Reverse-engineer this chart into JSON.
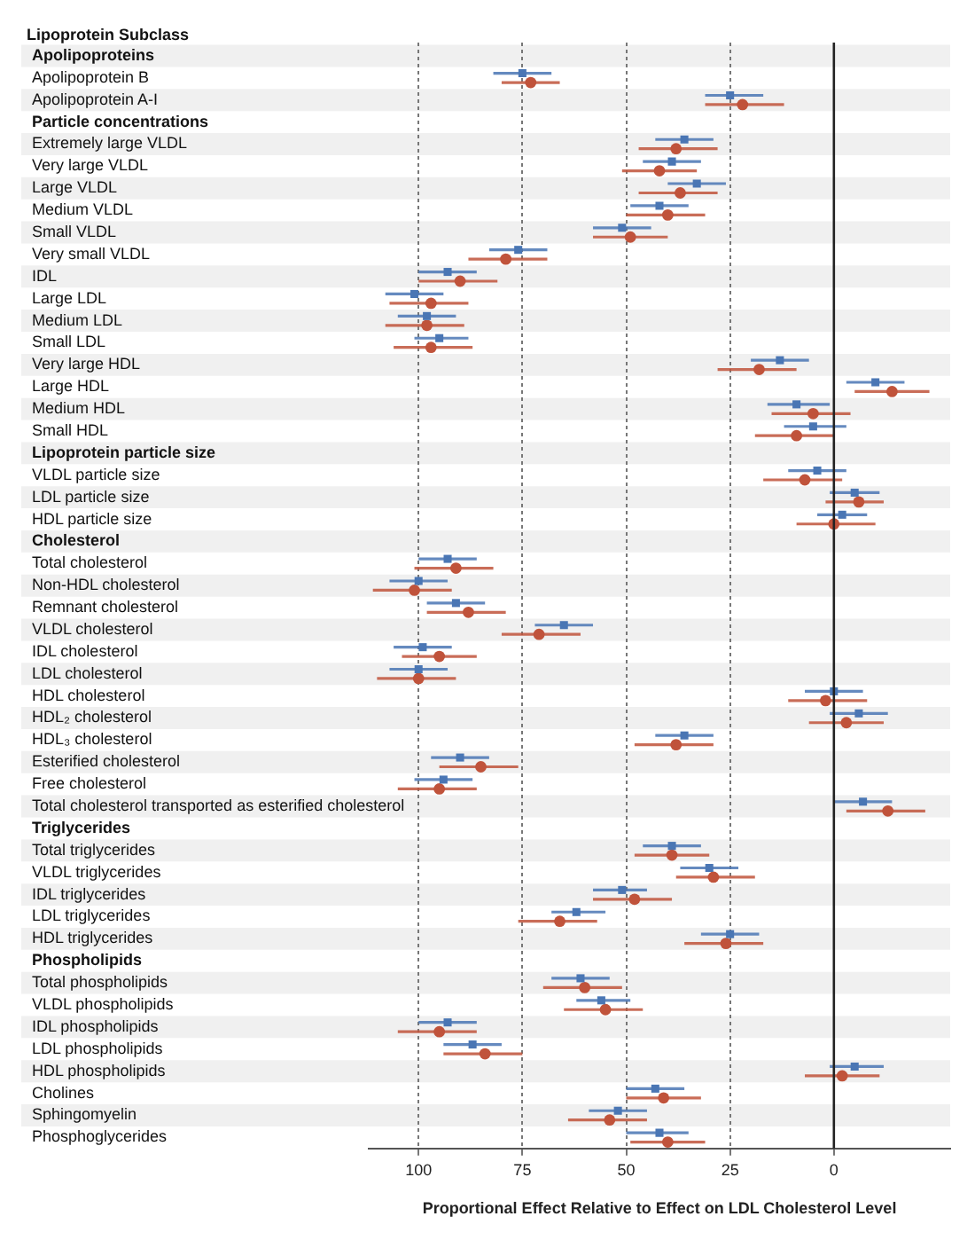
{
  "chart_data": {
    "type": "scatter",
    "orientation": "horizontal",
    "ylabel": "Lipoprotein Subclass",
    "xlabel": "Proportional Effect Relative to Effect on LDL Cholesterol Level",
    "categories": [
      "Apolipoproteins",
      "Apolipoprotein B",
      "Apolipoprotein A-I",
      "Particle concentrations",
      "Extremely large VLDL",
      "Very large VLDL",
      "Large VLDL",
      "Medium VLDL",
      "Small VLDL",
      "Very small VLDL",
      "IDL",
      "Large LDL",
      "Medium LDL",
      "Small LDL",
      "Very large HDL",
      "Large HDL",
      "Medium HDL",
      "Small HDL",
      "Lipoprotein particle size",
      "VLDL particle size",
      "LDL particle size",
      "HDL particle size",
      "Cholesterol",
      "Total cholesterol",
      "Non-HDL cholesterol",
      "Remnant cholesterol",
      "VLDL cholesterol",
      "IDL cholesterol",
      "LDL cholesterol",
      "HDL cholesterol",
      "HDL₂ cholesterol",
      "HDL₃ cholesterol",
      "Esterified cholesterol",
      "Free cholesterol",
      "Total cholesterol transported as esterified cholesterol",
      "Triglycerides",
      "Total triglycerides",
      "VLDL triglycerides",
      "IDL triglycerides",
      "LDL triglycerides",
      "HDL triglycerides",
      "Phospholipids",
      "Total phospholipids",
      "VLDL phospholipids",
      "IDL phospholipids",
      "LDL phospholipids",
      "HDL phospholipids",
      "Cholines",
      "Sphingomyelin",
      "Phosphoglycerides"
    ],
    "series": [
      {
        "color": "#4a76b4",
        "marker": "square",
        "values": [
          null,
          75,
          25,
          null,
          36,
          39,
          33,
          42,
          51,
          76,
          93,
          101,
          98,
          95,
          13,
          -10,
          9,
          5,
          null,
          4,
          -5,
          -2,
          null,
          93,
          100,
          91,
          65,
          99,
          100,
          0,
          -6,
          36,
          90,
          94,
          -7,
          null,
          39,
          30,
          51,
          62,
          25,
          null,
          61,
          56,
          93,
          87,
          -5,
          43,
          52,
          42
        ],
        "errors": [
          null,
          [
            68,
            82
          ],
          [
            17,
            31
          ],
          null,
          [
            29,
            43
          ],
          [
            32,
            46
          ],
          [
            26,
            40
          ],
          [
            35,
            49
          ],
          [
            44,
            58
          ],
          [
            69,
            83
          ],
          [
            86,
            100
          ],
          [
            94,
            108
          ],
          [
            91,
            105
          ],
          [
            88,
            101
          ],
          [
            6,
            20
          ],
          [
            -17,
            -3
          ],
          [
            1,
            16
          ],
          [
            -3,
            12
          ],
          null,
          [
            -3,
            11
          ],
          [
            -11,
            1
          ],
          [
            -8,
            4
          ],
          null,
          [
            86,
            100
          ],
          [
            93,
            107
          ],
          [
            84,
            98
          ],
          [
            58,
            72
          ],
          [
            92,
            106
          ],
          [
            93,
            107
          ],
          [
            -7,
            7
          ],
          [
            -13,
            1
          ],
          [
            29,
            43
          ],
          [
            83,
            97
          ],
          [
            87,
            101
          ],
          [
            -14,
            0
          ],
          null,
          [
            32,
            46
          ],
          [
            23,
            37
          ],
          [
            45,
            58
          ],
          [
            55,
            68
          ],
          [
            18,
            32
          ],
          null,
          [
            54,
            68
          ],
          [
            49,
            62
          ],
          [
            86,
            100
          ],
          [
            80,
            94
          ],
          [
            -12,
            1
          ],
          [
            36,
            50
          ],
          [
            45,
            59
          ],
          [
            35,
            50
          ]
        ]
      },
      {
        "color": "#c0533b",
        "marker": "circle",
        "values": [
          null,
          73,
          22,
          null,
          38,
          42,
          37,
          40,
          49,
          79,
          90,
          97,
          98,
          97,
          18,
          -14,
          5,
          9,
          null,
          7,
          -6,
          0,
          null,
          91,
          101,
          88,
          71,
          95,
          100,
          2,
          -3,
          38,
          85,
          95,
          -13,
          null,
          39,
          29,
          48,
          66,
          26,
          null,
          60,
          55,
          95,
          84,
          -2,
          41,
          54,
          40
        ],
        "errors": [
          null,
          [
            66,
            80
          ],
          [
            12,
            31
          ],
          null,
          [
            28,
            47
          ],
          [
            33,
            51
          ],
          [
            28,
            47
          ],
          [
            31,
            50
          ],
          [
            40,
            58
          ],
          [
            69,
            88
          ],
          [
            81,
            100
          ],
          [
            88,
            107
          ],
          [
            89,
            108
          ],
          [
            87,
            106
          ],
          [
            9,
            28
          ],
          [
            -23,
            -5
          ],
          [
            -4,
            15
          ],
          [
            0,
            19
          ],
          null,
          [
            -2,
            17
          ],
          [
            -12,
            2
          ],
          [
            -10,
            9
          ],
          null,
          [
            82,
            101
          ],
          [
            92,
            111
          ],
          [
            79,
            98
          ],
          [
            61,
            80
          ],
          [
            86,
            104
          ],
          [
            91,
            110
          ],
          [
            -8,
            11
          ],
          [
            -12,
            6
          ],
          [
            29,
            48
          ],
          [
            76,
            95
          ],
          [
            86,
            105
          ],
          [
            -22,
            -3
          ],
          null,
          [
            30,
            48
          ],
          [
            19,
            38
          ],
          [
            39,
            58
          ],
          [
            57,
            76
          ],
          [
            17,
            36
          ],
          null,
          [
            51,
            70
          ],
          [
            46,
            65
          ],
          [
            86,
            105
          ],
          [
            75,
            94
          ],
          [
            -11,
            7
          ],
          [
            32,
            50
          ],
          [
            45,
            64
          ],
          [
            31,
            49
          ]
        ]
      }
    ],
    "xlim": [
      112,
      -28
    ],
    "xticks": [
      100,
      75,
      50,
      25,
      0
    ],
    "grid": "x",
    "ref_lines": [
      {
        "axis": "x",
        "value": 0,
        "color": "#222222",
        "line_style": "solid"
      }
    ]
  }
}
